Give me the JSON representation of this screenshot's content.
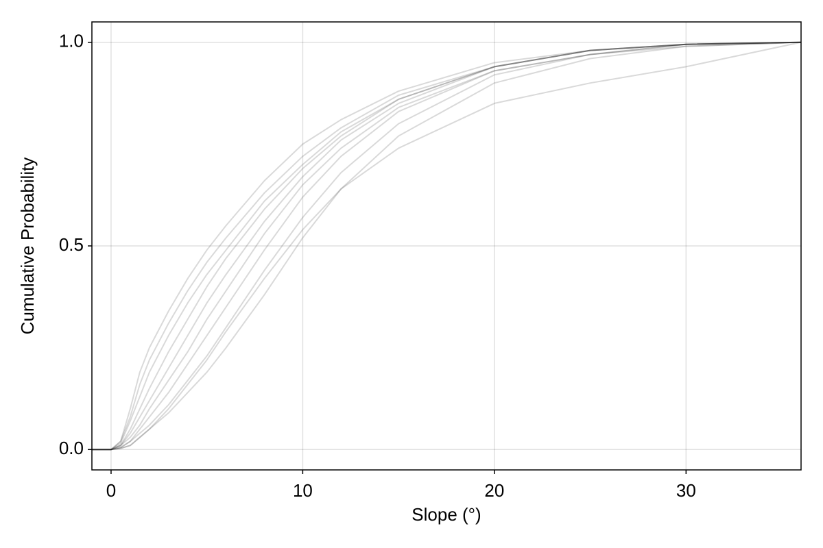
{
  "chart_data": {
    "type": "line",
    "xlabel": "Slope (°)",
    "ylabel": "Cumulative Probability",
    "x": [
      -1,
      0,
      0.5,
      1,
      1.5,
      2,
      3,
      4,
      5,
      6,
      8,
      10,
      12,
      15,
      20,
      25,
      30,
      36
    ],
    "series": [
      {
        "color": "rgba(0,0,0,0.15)",
        "values": [
          0,
          0,
          0.02,
          0.1,
          0.19,
          0.25,
          0.34,
          0.42,
          0.49,
          0.55,
          0.66,
          0.75,
          0.81,
          0.88,
          0.95,
          0.98,
          0.995,
          1
        ]
      },
      {
        "color": "rgba(0,0,0,0.15)",
        "values": [
          0,
          0,
          0.02,
          0.08,
          0.16,
          0.22,
          0.31,
          0.39,
          0.46,
          0.52,
          0.63,
          0.72,
          0.79,
          0.87,
          0.94,
          0.98,
          0.995,
          1
        ]
      },
      {
        "color": "rgba(0,0,0,0.15)",
        "values": [
          0,
          0,
          0.015,
          0.07,
          0.13,
          0.19,
          0.28,
          0.36,
          0.43,
          0.49,
          0.61,
          0.7,
          0.78,
          0.86,
          0.94,
          0.98,
          0.995,
          1
        ]
      },
      {
        "color": "rgba(0,0,0,0.15)",
        "values": [
          0,
          0,
          0.01,
          0.05,
          0.1,
          0.15,
          0.24,
          0.32,
          0.4,
          0.47,
          0.59,
          0.69,
          0.77,
          0.86,
          0.94,
          0.98,
          0.995,
          1
        ]
      },
      {
        "color": "rgba(0,0,0,0.15)",
        "values": [
          0,
          0,
          0.01,
          0.04,
          0.08,
          0.12,
          0.2,
          0.28,
          0.36,
          0.43,
          0.56,
          0.67,
          0.76,
          0.85,
          0.94,
          0.98,
          0.995,
          1
        ]
      },
      {
        "color": "rgba(0,0,0,0.15)",
        "values": [
          0,
          0,
          0.01,
          0.03,
          0.06,
          0.1,
          0.17,
          0.24,
          0.32,
          0.39,
          0.53,
          0.65,
          0.74,
          0.84,
          0.93,
          0.97,
          0.995,
          1
        ]
      },
      {
        "color": "rgba(0,0,0,0.15)",
        "values": [
          0,
          0,
          0.005,
          0.02,
          0.05,
          0.08,
          0.14,
          0.21,
          0.28,
          0.35,
          0.49,
          0.62,
          0.72,
          0.83,
          0.93,
          0.97,
          0.995,
          1
        ]
      },
      {
        "color": "rgba(0,0,0,0.15)",
        "values": [
          0,
          0,
          0.005,
          0.02,
          0.04,
          0.06,
          0.11,
          0.17,
          0.23,
          0.3,
          0.44,
          0.57,
          0.68,
          0.8,
          0.92,
          0.97,
          0.99,
          1
        ]
      },
      {
        "color": "rgba(0,0,0,0.15)",
        "values": [
          0,
          0,
          0.003,
          0.01,
          0.03,
          0.05,
          0.09,
          0.14,
          0.19,
          0.25,
          0.38,
          0.52,
          0.64,
          0.77,
          0.9,
          0.96,
          0.99,
          1
        ]
      },
      {
        "color": "rgba(0,0,0,0.15)",
        "values": [
          0,
          0,
          0.003,
          0.01,
          0.03,
          0.05,
          0.1,
          0.16,
          0.22,
          0.29,
          0.42,
          0.54,
          0.64,
          0.74,
          0.85,
          0.9,
          0.94,
          1
        ]
      }
    ],
    "xlim": [
      -1,
      36
    ],
    "xticks": [
      0,
      10,
      20,
      30
    ],
    "ylim": [
      -0.05,
      1.05
    ],
    "yticks": [
      {
        "value": 0,
        "label": "0.0"
      },
      0.5,
      {
        "value": 1,
        "label": "1.0"
      }
    ],
    "grid": true
  }
}
